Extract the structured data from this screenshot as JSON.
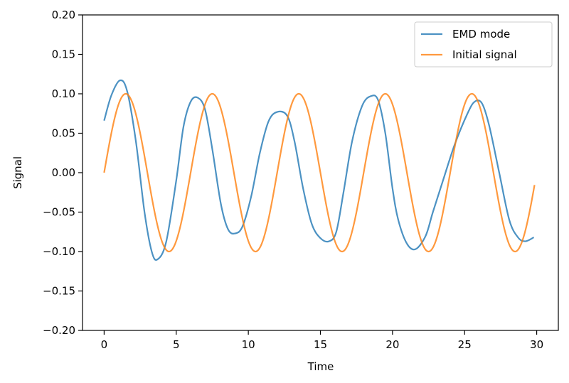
{
  "chart_data": {
    "type": "line",
    "title": "",
    "xlabel": "Time",
    "ylabel": "Signal",
    "xlim": [
      -1.5,
      31.5
    ],
    "ylim": [
      -0.2,
      0.2
    ],
    "xticks": [
      0,
      5,
      10,
      15,
      20,
      25,
      30
    ],
    "yticks": [
      -0.2,
      -0.15,
      -0.1,
      -0.05,
      0.0,
      0.05,
      0.1,
      0.15,
      0.2
    ],
    "xtick_labels": [
      "0",
      "5",
      "10",
      "15",
      "20",
      "25",
      "30"
    ],
    "ytick_labels": [
      "−0.20",
      "−0.15",
      "−0.10",
      "−0.05",
      "0.00",
      "0.05",
      "0.10",
      "0.15",
      "0.20"
    ],
    "grid": false,
    "legend_position": "top-right",
    "series": [
      {
        "name": "EMD mode",
        "color": "#1f77b4",
        "x": [
          0,
          0.5,
          1.1,
          1.6,
          2.2,
          2.8,
          3.3,
          3.7,
          4.3,
          5.0,
          5.5,
          6.0,
          6.5,
          7.0,
          7.5,
          8.1,
          8.6,
          9.1,
          9.6,
          10.2,
          10.8,
          11.4,
          12.0,
          12.7,
          13.2,
          13.8,
          14.4,
          15.0,
          15.6,
          16.1,
          16.6,
          17.2,
          17.9,
          18.5,
          19.0,
          19.5,
          20.0,
          20.4,
          21.0,
          21.6,
          22.3,
          22.8,
          23.5,
          24.3,
          25.2,
          25.7,
          26.2,
          26.7,
          27.4,
          28.1,
          28.7,
          29.2,
          29.8
        ],
        "y": [
          0.066,
          0.098,
          0.117,
          0.103,
          0.04,
          -0.05,
          -0.1,
          -0.11,
          -0.088,
          -0.01,
          0.058,
          0.09,
          0.095,
          0.08,
          0.03,
          -0.04,
          -0.072,
          -0.077,
          -0.068,
          -0.03,
          0.025,
          0.065,
          0.077,
          0.072,
          0.04,
          -0.02,
          -0.065,
          -0.083,
          -0.087,
          -0.075,
          -0.025,
          0.04,
          0.085,
          0.097,
          0.092,
          0.05,
          -0.02,
          -0.06,
          -0.09,
          -0.097,
          -0.08,
          -0.05,
          -0.01,
          0.035,
          0.075,
          0.09,
          0.088,
          0.06,
          0.0,
          -0.06,
          -0.082,
          -0.087,
          -0.082
        ]
      },
      {
        "name": "Initial signal",
        "color": "#ff7f0e",
        "x": [
          0,
          29.85
        ],
        "y": [
          0.0,
          -0.01
        ],
        "form": "0.1*sin(2*pi*t/6)"
      }
    ]
  }
}
